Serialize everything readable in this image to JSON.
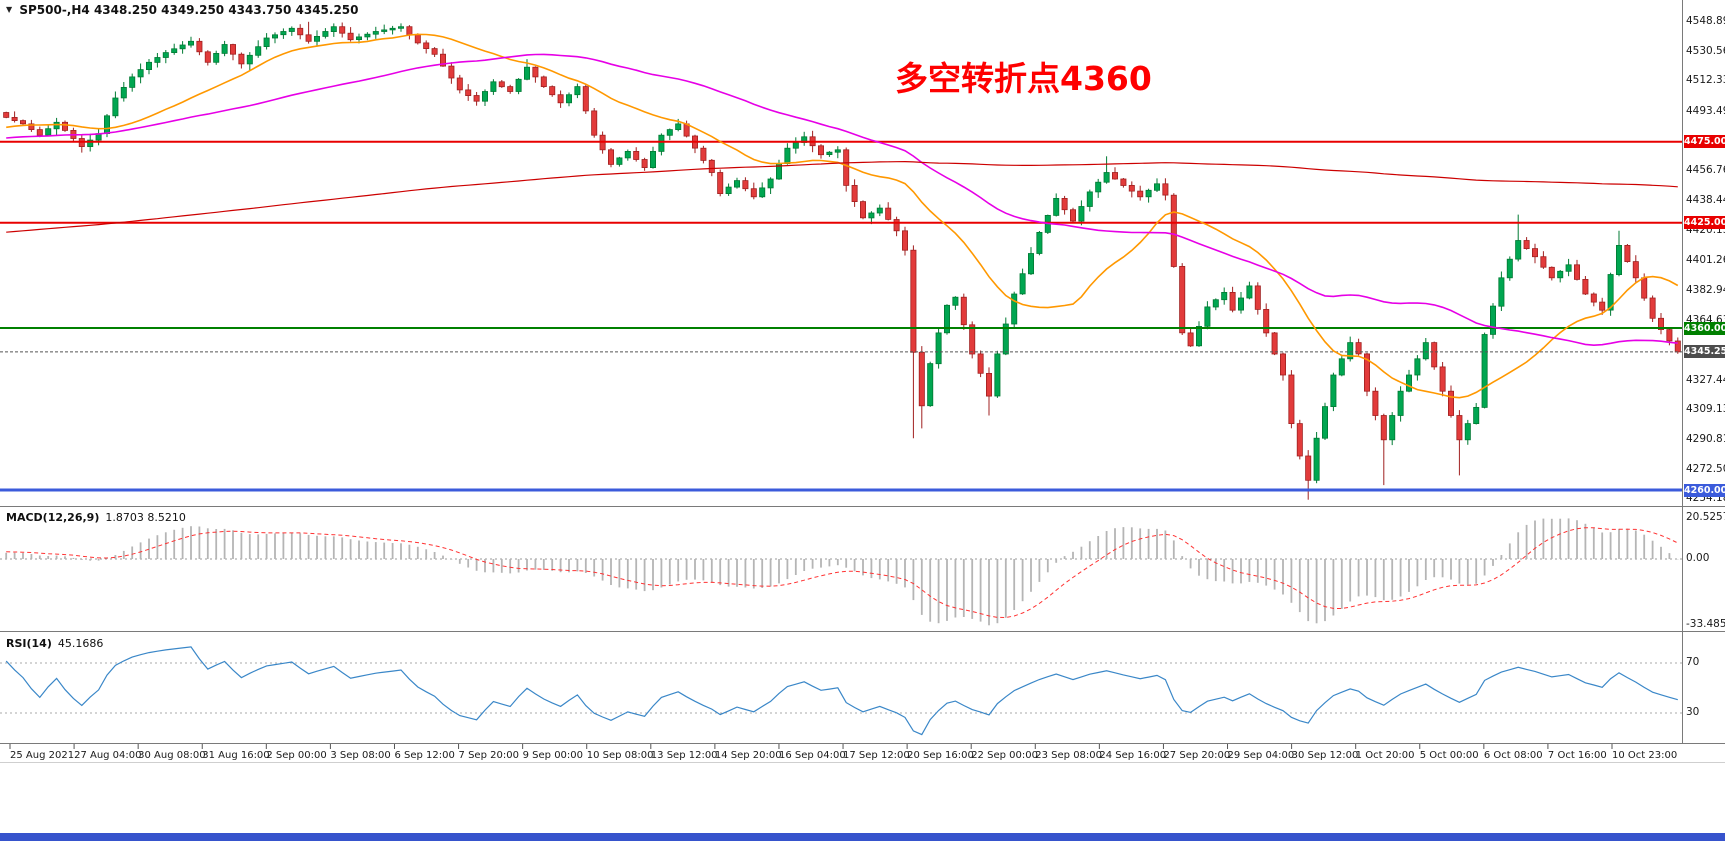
{
  "header": {
    "symbol_period": "SP500-,H4",
    "ohlc": "4348.250 4349.250 4343.750 4345.250"
  },
  "icons": {
    "symbol_marker": "▼"
  },
  "main_chart": {
    "annotation": {
      "text": "多空转折点4360",
      "color": "#fe0000"
    },
    "current_price": {
      "value": "4345.250"
    },
    "levels": [
      {
        "price": 4475.0,
        "label": "4475.000",
        "color": "#e80000",
        "width": 2
      },
      {
        "price": 4425.0,
        "label": "4425.000",
        "color": "#e80000",
        "width": 2
      },
      {
        "price": 4360.0,
        "label": "4360.000",
        "color": "#008000",
        "width": 2
      },
      {
        "price": 4260.0,
        "label": "4260.000",
        "color": "#3b5bdb",
        "width": 3
      }
    ],
    "scale_labels": [
      "4548.890",
      "4530.560",
      "4512.330",
      "4493.490",
      "4456.760",
      "4438.445",
      "4420.130",
      "4401.260",
      "4382.945",
      "4364.630",
      "4327.445",
      "4309.130",
      "4290.815",
      "4272.500",
      "4254.185"
    ]
  },
  "macd_panel": {
    "label": "MACD(12,26,9)",
    "values": "1.8703 8.5210",
    "scale_labels": [
      {
        "text": "20.5257",
        "value": 20.5257
      },
      {
        "text": "0.00",
        "value": 0
      },
      {
        "text": "-33.4859",
        "value": -33.4859
      }
    ]
  },
  "rsi_panel": {
    "label": "RSI(14)",
    "value": "45.1686",
    "levels": [
      70,
      30
    ],
    "scale_labels": [
      "70",
      "30"
    ]
  },
  "x_axis": {
    "labels": [
      "25 Aug 2021",
      "27 Aug 04:00",
      "30 Aug 08:00",
      "31 Aug 16:00",
      "2 Sep 00:00",
      "3 Sep 08:00",
      "6 Sep 12:00",
      "7 Sep 20:00",
      "9 Sep 00:00",
      "10 Sep 08:00",
      "13 Sep 12:00",
      "14 Sep 20:00",
      "16 Sep 04:00",
      "17 Sep 12:00",
      "20 Sep 16:00",
      "22 Sep 00:00",
      "23 Sep 08:00",
      "24 Sep 16:00",
      "27 Sep 20:00",
      "29 Sep 04:00",
      "30 Sep 12:00",
      "1 Oct 20:00",
      "5 Oct 00:00",
      "6 Oct 08:00",
      "7 Oct 16:00",
      "10 Oct 23:00"
    ]
  },
  "colors": {
    "up_candle": "#00a651",
    "up_edge": "#007a33",
    "down_candle": "#e23b3b",
    "down_edge": "#a02020",
    "macd_histogram": "#b5b5b5",
    "macd_signal": "#ff3333",
    "rsi_line": "#3a87c8",
    "current_price_tag": "#4d4d4d",
    "bottom_strip": "#3653cc"
  },
  "chart_data": {
    "type": "candlestick",
    "symbol": "SP500-",
    "timeframe": "H4",
    "title": "SP500- H4 candlestick chart with MA lines, MACD(12,26,9) and RSI(14)",
    "last_ohlc": {
      "open": 4348.25,
      "high": 4349.25,
      "low": 4343.75,
      "close": 4345.25
    },
    "current_price": 4345.25,
    "x_range": [
      "25 Aug 2021",
      "10 Oct 23:00"
    ],
    "price_axis_range": [
      4252,
      4557
    ],
    "horizontal_levels": [
      4475.0,
      4425.0,
      4360.0,
      4260.0
    ],
    "annotation": "多空转折点4360",
    "n_candles": 200,
    "price_anchors": [
      [
        0,
        4490
      ],
      [
        2,
        4486
      ],
      [
        4,
        4479
      ],
      [
        6,
        4487
      ],
      [
        9,
        4472
      ],
      [
        11,
        4480
      ],
      [
        13,
        4502
      ],
      [
        15,
        4515
      ],
      [
        17,
        4524
      ],
      [
        19,
        4530
      ],
      [
        22,
        4537
      ],
      [
        24,
        4524
      ],
      [
        26,
        4535
      ],
      [
        28,
        4523
      ],
      [
        31,
        4539
      ],
      [
        34,
        4545
      ],
      [
        36,
        4537
      ],
      [
        39,
        4546
      ],
      [
        41,
        4538
      ],
      [
        44,
        4543
      ],
      [
        47,
        4546
      ],
      [
        49,
        4536
      ],
      [
        51,
        4529
      ],
      [
        54,
        4507
      ],
      [
        56,
        4500
      ],
      [
        58,
        4512
      ],
      [
        60,
        4506
      ],
      [
        62,
        4521
      ],
      [
        64,
        4509
      ],
      [
        66,
        4499
      ],
      [
        68,
        4509
      ],
      [
        70,
        4479
      ],
      [
        72,
        4461
      ],
      [
        74,
        4469
      ],
      [
        76,
        4459
      ],
      [
        78,
        4479
      ],
      [
        80,
        4486
      ],
      [
        82,
        4471
      ],
      [
        84,
        4456
      ],
      [
        85,
        4443
      ],
      [
        87,
        4451
      ],
      [
        89,
        4441
      ],
      [
        91,
        4452
      ],
      [
        93,
        4471
      ],
      [
        95,
        4478
      ],
      [
        97,
        4467
      ],
      [
        99,
        4470
      ],
      [
        100,
        4448
      ],
      [
        102,
        4428
      ],
      [
        104,
        4434
      ],
      [
        106,
        4420
      ],
      [
        107,
        4408
      ],
      [
        108,
        4345
      ],
      [
        109,
        4312
      ],
      [
        110,
        4338
      ],
      [
        111,
        4357
      ],
      [
        112,
        4374
      ],
      [
        113,
        4379
      ],
      [
        114,
        4362
      ],
      [
        115,
        4344
      ],
      [
        116,
        4332
      ],
      [
        117,
        4318
      ],
      [
        118,
        4344
      ],
      [
        120,
        4381
      ],
      [
        122,
        4406
      ],
      [
        123,
        4419
      ],
      [
        125,
        4440
      ],
      [
        127,
        4426
      ],
      [
        129,
        4444
      ],
      [
        131,
        4456
      ],
      [
        133,
        4448
      ],
      [
        135,
        4441
      ],
      [
        137,
        4449
      ],
      [
        138,
        4442
      ],
      [
        139,
        4398
      ],
      [
        140,
        4357
      ],
      [
        141,
        4349
      ],
      [
        143,
        4373
      ],
      [
        145,
        4382
      ],
      [
        146,
        4371
      ],
      [
        148,
        4386
      ],
      [
        150,
        4357
      ],
      [
        152,
        4331
      ],
      [
        153,
        4301
      ],
      [
        154,
        4281
      ],
      [
        155,
        4266
      ],
      [
        156,
        4292
      ],
      [
        158,
        4331
      ],
      [
        160,
        4351
      ],
      [
        161,
        4344
      ],
      [
        162,
        4321
      ],
      [
        164,
        4291
      ],
      [
        166,
        4321
      ],
      [
        168,
        4341
      ],
      [
        169,
        4351
      ],
      [
        171,
        4321
      ],
      [
        173,
        4291
      ],
      [
        175,
        4311
      ],
      [
        176,
        4356
      ],
      [
        178,
        4391
      ],
      [
        180,
        4414
      ],
      [
        182,
        4404
      ],
      [
        184,
        4391
      ],
      [
        186,
        4399
      ],
      [
        188,
        4381
      ],
      [
        190,
        4371
      ],
      [
        191,
        4393
      ],
      [
        192,
        4411
      ],
      [
        194,
        4391
      ],
      [
        196,
        4366
      ],
      [
        198,
        4352
      ],
      [
        199,
        4345.25
      ]
    ],
    "wick_overrides": {
      "36": {
        "high": 4549
      },
      "39": {
        "high": 4548
      },
      "47": {
        "high": 4548
      },
      "62": {
        "high": 4526
      },
      "108": {
        "low": 4292
      },
      "109": {
        "low": 4298
      },
      "117": {
        "low": 4306
      },
      "131": {
        "high": 4466
      },
      "155": {
        "low": 4254
      },
      "164": {
        "low": 4263
      },
      "173": {
        "low": 4269
      },
      "180": {
        "high": 4430
      },
      "192": {
        "high": 4420
      }
    },
    "moving_averages": [
      {
        "color": "#ff9800",
        "period": 20
      },
      {
        "color": "#e600e6",
        "period": 50
      },
      {
        "color": "#cc0000",
        "period": 300
      }
    ],
    "indicator_seed": {
      "len": 320,
      "start": 4340,
      "end": 4488,
      "wobble": 5,
      "wobble_freq": 0.35
    },
    "macd": {
      "params": [
        12,
        26,
        9
      ],
      "display_values": [
        1.8703,
        8.521
      ],
      "axis": [
        -33.4859,
        20.5257
      ]
    },
    "rsi": {
      "period": 14,
      "value": 45.1686,
      "levels": [
        30,
        70
      ]
    }
  }
}
